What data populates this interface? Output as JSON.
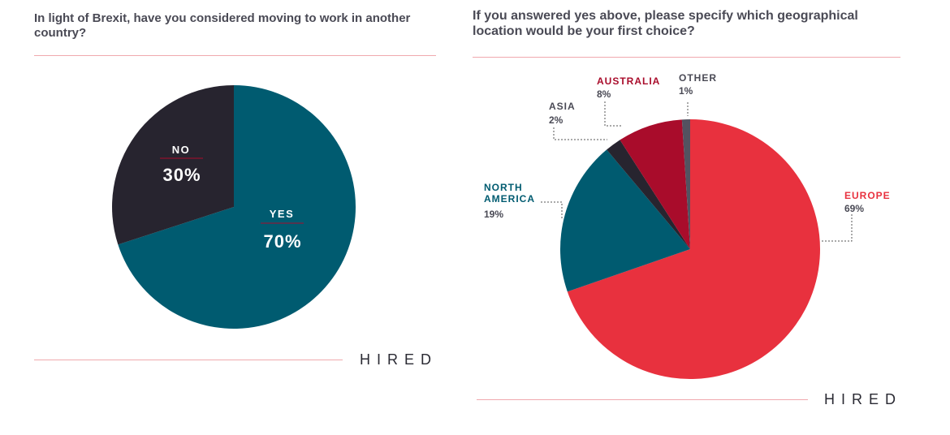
{
  "colors": {
    "yes": "#005b70",
    "no": "#27242f",
    "europe": "#e8313e",
    "north_america": "#005b70",
    "asia": "#27242f",
    "australia": "#a90c2b",
    "other": "#535260",
    "rule": "#f0a9ae",
    "text_dark": "#4a4a55"
  },
  "left": {
    "question": "In light of Brexit, have you considered moving to work in another country?",
    "brand": "HIRED"
  },
  "right": {
    "question": "If you answered yes above, please specify which geographical location would be your first choice?",
    "brand": "HIRED"
  },
  "chart_data": [
    {
      "type": "pie",
      "categories": [
        "YES",
        "NO"
      ],
      "values": [
        70,
        30
      ],
      "value_labels": [
        "70%",
        "30%"
      ]
    },
    {
      "type": "pie",
      "categories": [
        "EUROPE",
        "NORTH AMERICA",
        "ASIA",
        "AUSTRALIA",
        "OTHER"
      ],
      "values": [
        69,
        19,
        2,
        8,
        1
      ],
      "value_labels": [
        "69%",
        "19%",
        "2%",
        "8%",
        "1%"
      ]
    }
  ]
}
